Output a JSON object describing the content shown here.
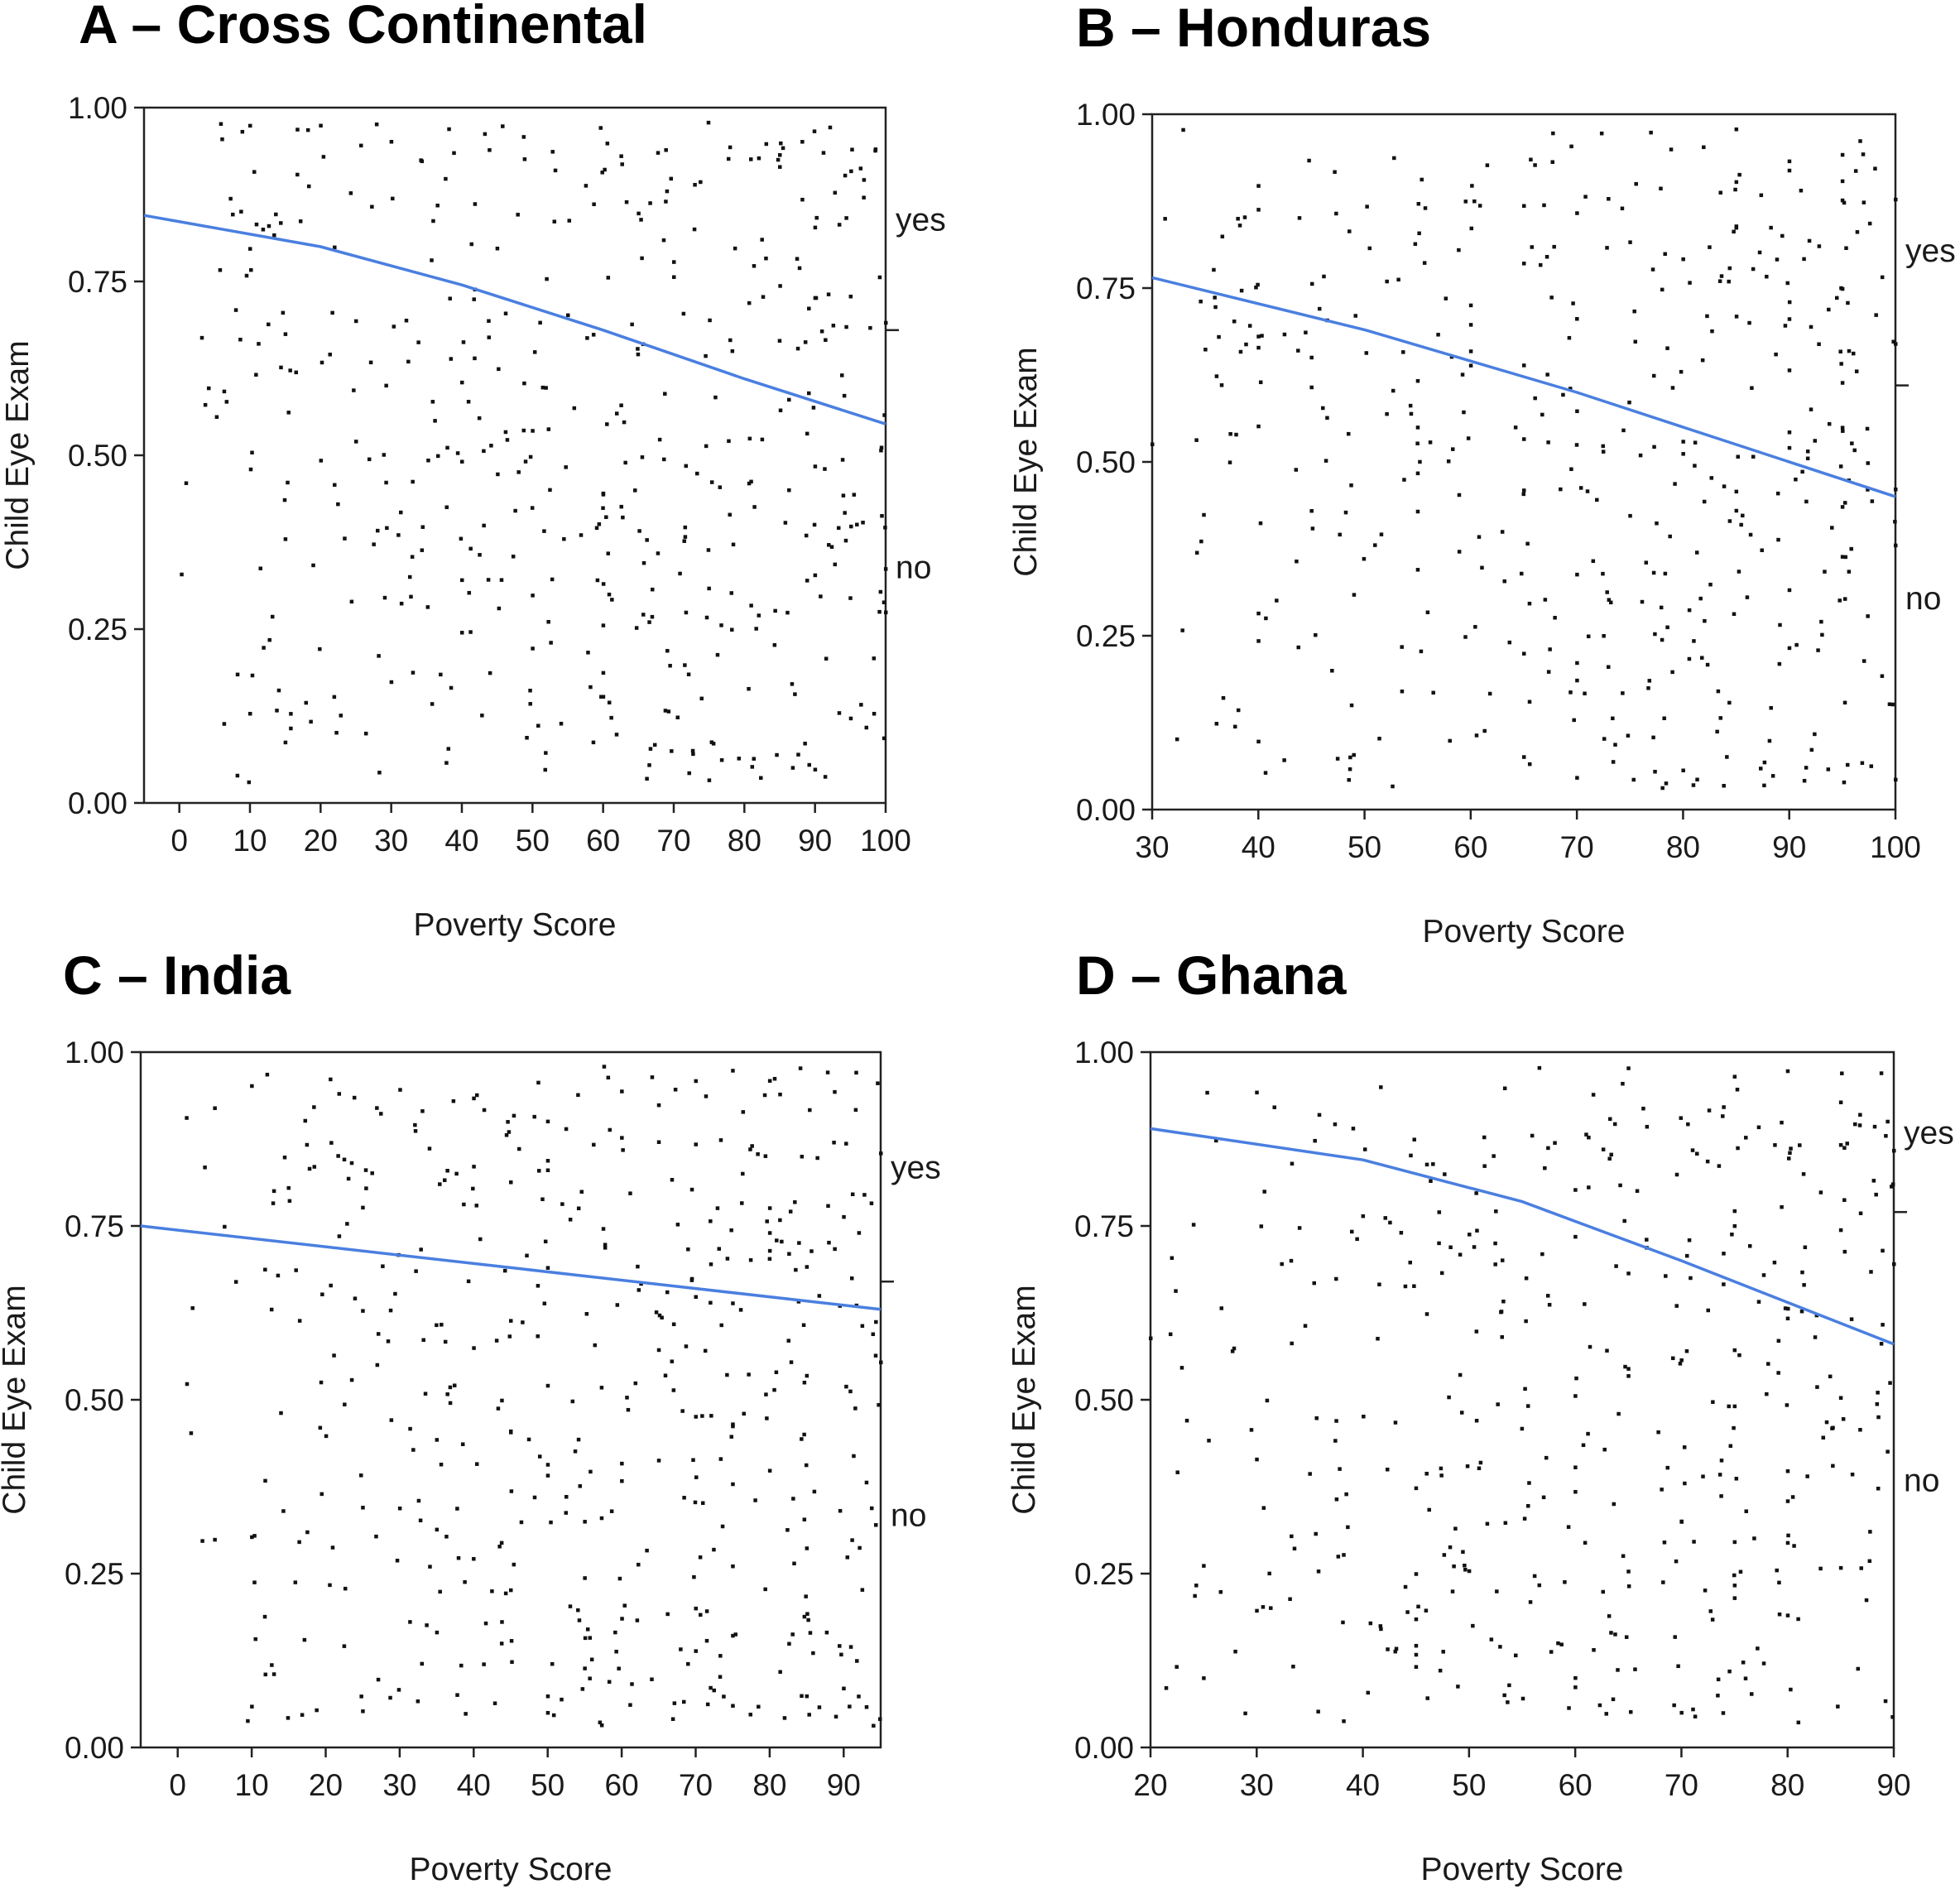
{
  "colors": {
    "fit_line": "#4a7fe0",
    "points": "#111111",
    "axis": "#222222"
  },
  "chart_data": [
    {
      "type": "scatter",
      "title": "A – Cross Continental",
      "xlabel": "Poverty Score",
      "ylabel": "Child Eye Exam",
      "xlim": [
        -5,
        100
      ],
      "ylim": [
        0,
        1
      ],
      "xticks": [
        0,
        10,
        20,
        30,
        40,
        50,
        60,
        70,
        80,
        90,
        100
      ],
      "yticks": [
        "0.00",
        "0.25",
        "0.50",
        "0.75",
        "1.00"
      ],
      "grid": false,
      "outcome_labels": {
        "yes": "yes",
        "no": "no"
      },
      "outcome_divider": 0.68,
      "fit_line": [
        [
          -5,
          0.845
        ],
        [
          20,
          0.8
        ],
        [
          40,
          0.745
        ],
        [
          60,
          0.68
        ],
        [
          80,
          0.61
        ],
        [
          100,
          0.545
        ]
      ],
      "seed": 11,
      "n_points": 460
    },
    {
      "type": "scatter",
      "title": "B – Honduras",
      "xlabel": "Poverty Score",
      "ylabel": "Child Eye Exam",
      "xlim": [
        30,
        100
      ],
      "ylim": [
        0,
        1
      ],
      "xticks": [
        30,
        40,
        50,
        60,
        70,
        80,
        90,
        100
      ],
      "yticks": [
        "0.00",
        "0.25",
        "0.50",
        "0.75",
        "1.00"
      ],
      "grid": false,
      "outcome_labels": {
        "yes": "yes",
        "no": "no"
      },
      "outcome_divider": 0.61,
      "fit_line": [
        [
          30,
          0.765
        ],
        [
          50,
          0.69
        ],
        [
          70,
          0.6
        ],
        [
          85,
          0.525
        ],
        [
          100,
          0.45
        ]
      ],
      "seed": 23,
      "n_points": 440
    },
    {
      "type": "scatter",
      "title": "C – India",
      "xlabel": "Poverty Score",
      "ylabel": "Child Eye Exam",
      "xlim": [
        -5,
        95
      ],
      "ylim": [
        0,
        1
      ],
      "xticks": [
        0,
        10,
        20,
        30,
        40,
        50,
        60,
        70,
        80,
        90
      ],
      "yticks": [
        "0.00",
        "0.25",
        "0.50",
        "0.75",
        "1.00"
      ],
      "grid": false,
      "outcome_labels": {
        "yes": "yes",
        "no": "no"
      },
      "outcome_divider": 0.67,
      "fit_line": [
        [
          -5,
          0.75
        ],
        [
          45,
          0.69
        ],
        [
          95,
          0.63
        ]
      ],
      "seed": 37,
      "n_points": 470
    },
    {
      "type": "scatter",
      "title": "D – Ghana",
      "xlabel": "Poverty Score",
      "ylabel": "Child Eye Exam",
      "xlim": [
        20,
        90
      ],
      "ylim": [
        0,
        1
      ],
      "xticks": [
        20,
        30,
        40,
        50,
        60,
        70,
        80,
        90
      ],
      "yticks": [
        "0.00",
        "0.25",
        "0.50",
        "0.75",
        "1.00"
      ],
      "grid": false,
      "outcome_labels": {
        "yes": "yes",
        "no": "no"
      },
      "outcome_divider": 0.77,
      "fit_line": [
        [
          20,
          0.89
        ],
        [
          40,
          0.845
        ],
        [
          55,
          0.785
        ],
        [
          70,
          0.7
        ],
        [
          80,
          0.64
        ],
        [
          90,
          0.58
        ]
      ],
      "seed": 53,
      "n_points": 420
    }
  ]
}
